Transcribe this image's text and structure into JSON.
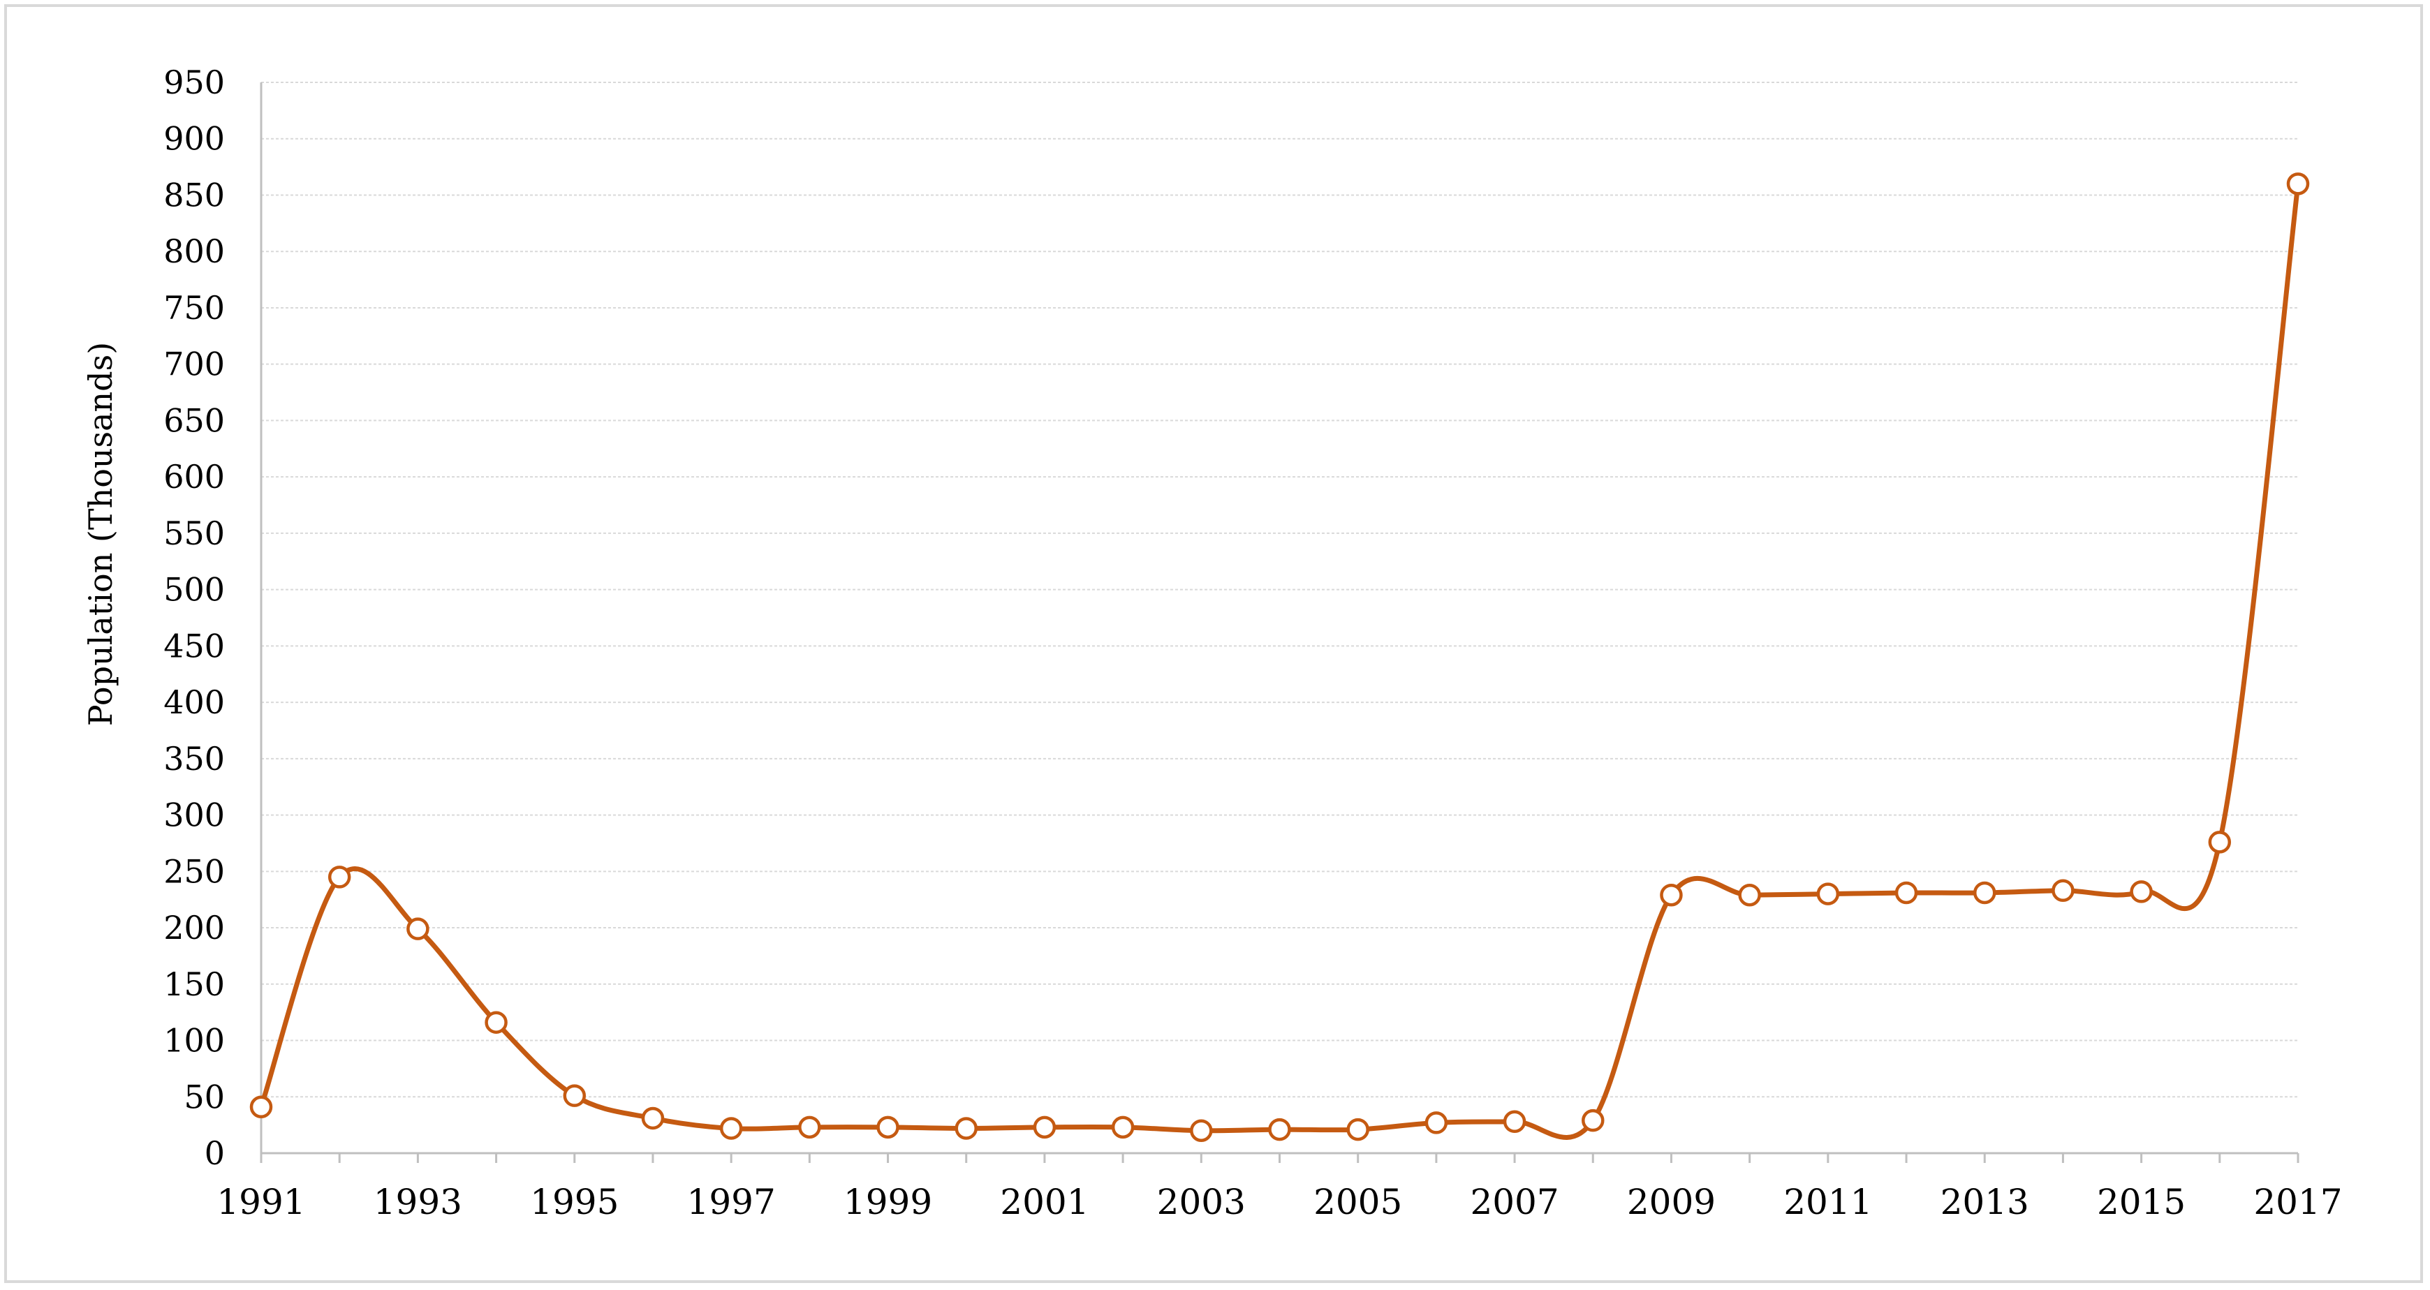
{
  "chart_data": {
    "type": "line",
    "title": "",
    "xlabel": "",
    "ylabel": "Population (Thousands)",
    "ylim": [
      0,
      950
    ],
    "ytick_step": 50,
    "xlim": [
      1991,
      2017
    ],
    "x_tick_labels": [
      "1991",
      "1993",
      "1995",
      "1997",
      "1999",
      "2001",
      "2003",
      "2005",
      "2007",
      "2009",
      "2011",
      "2013",
      "2015",
      "2017"
    ],
    "grid": true,
    "legend": "none",
    "line_color": "#c55a11",
    "marker_fill": "#ffffff",
    "smooth": true,
    "series": [
      {
        "x": [
          1991,
          1992,
          1993,
          1994,
          1995,
          1996,
          1997,
          1998,
          1999,
          2000,
          2001,
          2002,
          2003,
          2004,
          2005,
          2006,
          2007,
          2008,
          2009,
          2010,
          2011,
          2012,
          2013,
          2014,
          2015,
          2016,
          2017
        ],
        "values": [
          41,
          245,
          199,
          116,
          51,
          31,
          22,
          23,
          23,
          22,
          23,
          23,
          20,
          21,
          21,
          27,
          28,
          29,
          229,
          229,
          230,
          231,
          231,
          233,
          232,
          276,
          860
        ]
      }
    ]
  }
}
